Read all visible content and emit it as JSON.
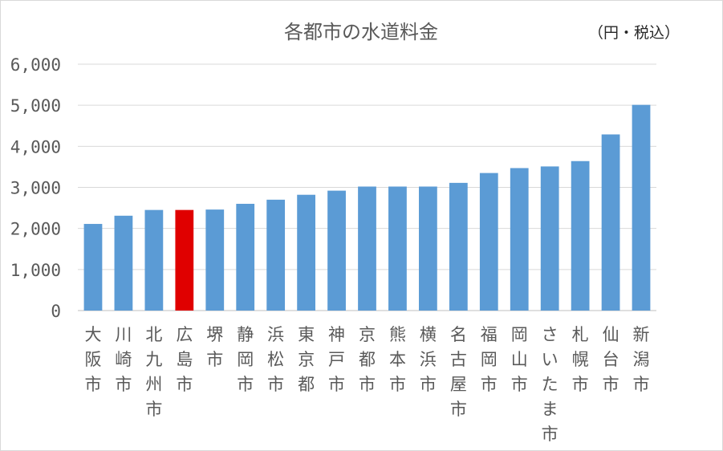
{
  "chart_data": {
    "type": "bar",
    "title": "各都市の水道料金",
    "unit": "（円・税込）",
    "ylim": [
      0,
      6000
    ],
    "yticks": [
      "0",
      "1,000",
      "2,000",
      "3,000",
      "4,000",
      "5,000",
      "6,000"
    ],
    "categories": [
      "大阪市",
      "川崎市",
      "北九州市",
      "広島市",
      "堺市",
      "静岡市",
      "浜松市",
      "東京都",
      "神戸市",
      "京都市",
      "熊本市",
      "横浜市",
      "名古屋市",
      "福岡市",
      "岡山市",
      "さいたま市",
      "札幌市",
      "仙台市",
      "新潟市"
    ],
    "values": [
      2110,
      2310,
      2450,
      2450,
      2460,
      2600,
      2700,
      2820,
      2920,
      3020,
      3020,
      3020,
      3110,
      3350,
      3470,
      3510,
      3640,
      4290,
      5010
    ],
    "highlight_category": "広島市",
    "colors": {
      "bar": "#5b9bd5",
      "highlight": "#e00000",
      "grid": "#d9d9d9",
      "text": "#595959"
    },
    "grid": true,
    "legend": "none"
  }
}
